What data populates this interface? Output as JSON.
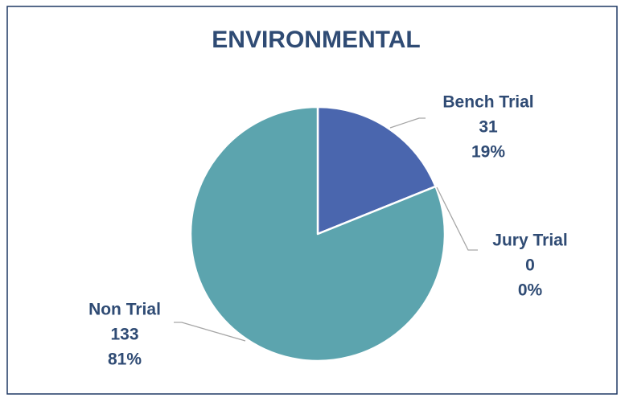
{
  "chart_data": {
    "type": "pie",
    "title": "ENVIRONMENTAL",
    "categories": [
      "Bench Trial",
      "Jury Trial",
      "Non Trial"
    ],
    "values": [
      31,
      0,
      133
    ],
    "percent_labels": [
      "19%",
      "0%",
      "81%"
    ],
    "colors": [
      "#4a66ae",
      "#4f7fc0",
      "#5ca4ae"
    ]
  }
}
